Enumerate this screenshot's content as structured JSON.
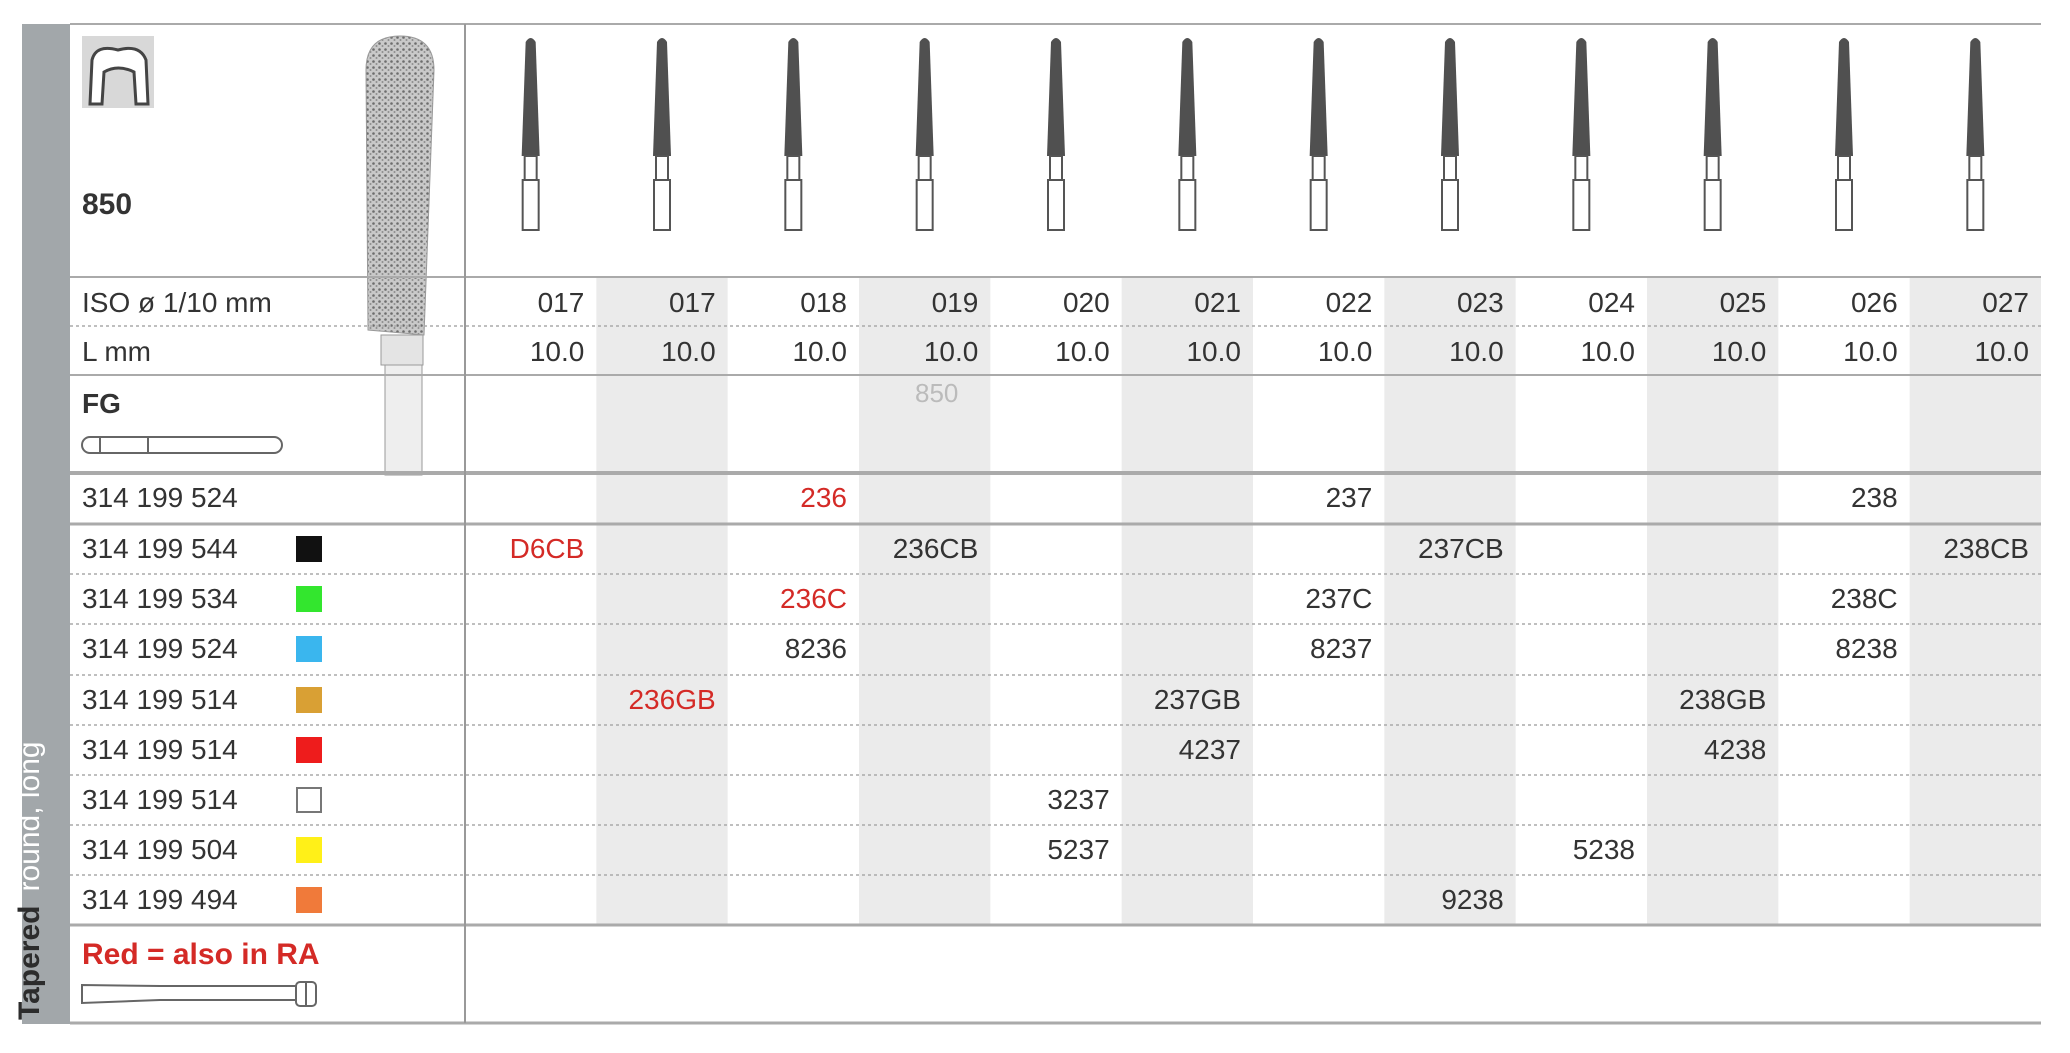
{
  "header": {
    "code": "850",
    "side_label": {
      "bold": "Tapered",
      "normal": "round, long"
    },
    "iso_label": "ISO ø 1/10 mm",
    "length_label": "L mm",
    "shank": "FG",
    "note": "Red = also in RA"
  },
  "sizes": [
    "017",
    "017",
    "018",
    "019",
    "020",
    "021",
    "022",
    "023",
    "024",
    "025",
    "026",
    "027"
  ],
  "lengths": [
    "10.0",
    "10.0",
    "10.0",
    "10.0",
    "10.0",
    "10.0",
    "10.0",
    "10.0",
    "10.0",
    "10.0",
    "10.0",
    "10.0"
  ],
  "rows": [
    {
      "code": "314 199 524",
      "color": null,
      "cells": [
        null,
        null,
        {
          "text": "236",
          "color": "#d42a26"
        },
        null,
        null,
        null,
        {
          "text": "237",
          "color": "#333333"
        },
        null,
        null,
        null,
        {
          "text": "238",
          "color": "#333333"
        },
        null
      ]
    },
    {
      "code": "314 199 544",
      "color": "#111111",
      "cells": [
        {
          "text": "D6CB",
          "color": "#d42a26"
        },
        null,
        null,
        {
          "text": "236CB",
          "color": "#333333"
        },
        null,
        null,
        null,
        {
          "text": "237CB",
          "color": "#333333"
        },
        null,
        null,
        null,
        {
          "text": "238CB",
          "color": "#333333"
        }
      ]
    },
    {
      "code": "314 199 534",
      "color": "#33e62e",
      "cells": [
        null,
        null,
        {
          "text": "236C",
          "color": "#d42a26"
        },
        null,
        null,
        null,
        {
          "text": "237C",
          "color": "#333333"
        },
        null,
        null,
        null,
        {
          "text": "238C",
          "color": "#333333"
        },
        null
      ]
    },
    {
      "code": "314 199 524",
      "color": "#3ab6ee",
      "cells": [
        null,
        null,
        {
          "text": "8236",
          "color": "#333333"
        },
        null,
        null,
        null,
        {
          "text": "8237",
          "color": "#333333"
        },
        null,
        null,
        null,
        {
          "text": "8238",
          "color": "#333333"
        },
        null
      ]
    },
    {
      "code": "314 199 514",
      "color": "#d9a034",
      "cells": [
        null,
        {
          "text": "236GB",
          "color": "#d42a26"
        },
        null,
        null,
        null,
        {
          "text": "237GB",
          "color": "#333333"
        },
        null,
        null,
        null,
        {
          "text": "238GB",
          "color": "#333333"
        },
        null,
        null
      ]
    },
    {
      "code": "314 199 514",
      "color": "#ee1c1c",
      "cells": [
        null,
        null,
        null,
        null,
        null,
        {
          "text": "4237",
          "color": "#333333"
        },
        null,
        null,
        null,
        {
          "text": "4238",
          "color": "#333333"
        },
        null,
        null
      ]
    },
    {
      "code": "314 199 514",
      "color": "#ffffff",
      "cells": [
        null,
        null,
        null,
        null,
        {
          "text": "3237",
          "color": "#333333"
        },
        null,
        null,
        null,
        null,
        null,
        null,
        null
      ]
    },
    {
      "code": "314 199 504",
      "color": "#fff018",
      "cells": [
        null,
        null,
        null,
        null,
        {
          "text": "5237",
          "color": "#333333"
        },
        null,
        null,
        null,
        {
          "text": "5238",
          "color": "#333333"
        },
        null,
        null,
        null
      ]
    },
    {
      "code": "314 199 494",
      "color": "#f07a3a",
      "cells": [
        null,
        null,
        null,
        null,
        null,
        null,
        null,
        {
          "text": "9238",
          "color": "#333333"
        },
        null,
        null,
        null,
        null
      ]
    }
  ]
}
